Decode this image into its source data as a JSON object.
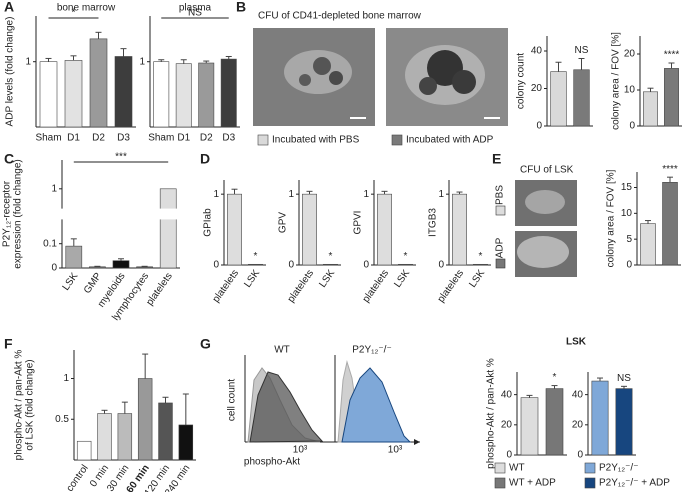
{
  "panel_labels": [
    "A",
    "B",
    "C",
    "D",
    "E",
    "F",
    "G"
  ],
  "chart_data": [
    {
      "type": "bar",
      "title": "bone marrow",
      "ylabel": [
        "ADP levels (fold change)"
      ],
      "categories": [
        "Sham",
        "D1",
        "D2",
        "D3"
      ],
      "values": [
        1.0,
        1.02,
        1.35,
        1.08
      ],
      "errors": [
        0.05,
        0.07,
        0.1,
        0.12
      ],
      "colors": [
        "#ffffff",
        "#e2e2e2",
        "#9a9a9a",
        "#3d3d3d"
      ],
      "ylim": [
        0,
        1.7
      ],
      "yticks": [
        1
      ],
      "annotation": "*"
    },
    {
      "type": "bar",
      "title": "plasma",
      "categories": [
        "Sham",
        "D1",
        "D2",
        "D3"
      ],
      "values": [
        1.0,
        0.97,
        0.98,
        1.04
      ],
      "errors": [
        0.03,
        0.06,
        0.03,
        0.04
      ],
      "colors": [
        "#ffffff",
        "#e2e2e2",
        "#9a9a9a",
        "#3d3d3d"
      ],
      "ylim": [
        0,
        1.7
      ],
      "yticks": [
        1
      ],
      "annotation": "NS"
    },
    {
      "type": "bar",
      "ylabel": [
        "colony count"
      ],
      "values": [
        29,
        30
      ],
      "errors": [
        5,
        6
      ],
      "colors": [
        "#d9d9d9",
        "#7a7a7a"
      ],
      "ylim": [
        0,
        48
      ],
      "yticks": [
        0,
        20,
        40
      ],
      "annotation": "NS"
    },
    {
      "type": "bar",
      "ylabel": [
        "colony area / FOV [%]"
      ],
      "values": [
        9.5,
        16
      ],
      "errors": [
        1,
        1.5
      ],
      "colors": [
        "#d9d9d9",
        "#7a7a7a"
      ],
      "ylim": [
        0,
        25
      ],
      "yticks": [
        0,
        10,
        20
      ],
      "annotation": "****"
    },
    {
      "type": "bar",
      "ylabel": [
        "P2Y₁₂-receptor",
        "expression (fold change)"
      ],
      "categories": [
        "LSK",
        "GMP",
        "myeloids",
        "lymphocytes",
        "platelets"
      ],
      "values": [
        0.09,
        0.005,
        0.03,
        0.005,
        1
      ],
      "errors": [
        0.03,
        0.002,
        0.008,
        0.002,
        null
      ],
      "colors": [
        "#a9a9a9",
        "#777777",
        "#111111",
        "#666666",
        "#dddddd"
      ],
      "ylim": [
        0,
        1.2
      ],
      "axis_break": [
        0.2,
        0.9
      ],
      "yticks": [
        0,
        0.1,
        1
      ],
      "annotation": "***"
    },
    {
      "type": "bar",
      "ylabel": [
        "GPIab"
      ],
      "categories": [
        "platelets",
        "LSK"
      ],
      "values": [
        1,
        0.01
      ],
      "errors": [
        0.07,
        null
      ],
      "colors": [
        "#dddddd",
        "#888888"
      ],
      "ylim": [
        0,
        1.2
      ],
      "yticks": [
        0,
        1
      ],
      "annotation": "*"
    },
    {
      "type": "bar",
      "ylabel": [
        "GPV"
      ],
      "categories": [
        "platelets",
        "LSK"
      ],
      "values": [
        1,
        0.01
      ],
      "errors": [
        0.04,
        null
      ],
      "colors": [
        "#dddddd",
        "#888888"
      ],
      "ylim": [
        0,
        1.2
      ],
      "yticks": [
        0,
        1
      ],
      "annotation": "*"
    },
    {
      "type": "bar",
      "ylabel": [
        "GPVI"
      ],
      "categories": [
        "platelets",
        "LSK"
      ],
      "values": [
        1,
        0.01
      ],
      "errors": [
        0.04,
        null
      ],
      "colors": [
        "#dddddd",
        "#888888"
      ],
      "ylim": [
        0,
        1.2
      ],
      "yticks": [
        0,
        1
      ],
      "annotation": "*"
    },
    {
      "type": "bar",
      "ylabel": [
        "ITGB3"
      ],
      "categories": [
        "platelets",
        "LSK"
      ],
      "values": [
        1,
        0.01
      ],
      "errors": [
        0.03,
        null
      ],
      "colors": [
        "#dddddd",
        "#888888"
      ],
      "ylim": [
        0,
        1.2
      ],
      "yticks": [
        0,
        1
      ],
      "annotation": "*"
    },
    {
      "type": "bar",
      "ylabel": [
        "colony area / FOV  [%]"
      ],
      "values": [
        8,
        16
      ],
      "errors": [
        0.6,
        1
      ],
      "colors": [
        "#dddddd",
        "#777777"
      ],
      "ylim": [
        0,
        18
      ],
      "yticks": [
        0,
        5,
        10,
        15
      ],
      "annotation": "****"
    },
    {
      "type": "bar",
      "ylabel": [
        "phospho-Akt / pan-Akt %",
        "of LSK (fold change)"
      ],
      "categories": [
        "control",
        "0 min",
        "30 min",
        "60 min",
        "120 min",
        "240 min"
      ],
      "values": [
        0.23,
        0.57,
        0.57,
        1.0,
        0.7,
        0.43
      ],
      "errors": [
        null,
        0.04,
        0.14,
        0.3,
        0.07,
        0.38
      ],
      "colors": [
        "#ffffff",
        "#dddddd",
        "#bbbbbb",
        "#999999",
        "#555555",
        "#111111"
      ],
      "ylim": [
        0,
        1.35
      ],
      "yticks": [
        0.5,
        1
      ]
    },
    {
      "type": "bar",
      "ylabel": [
        "phospho-Akt / pan-Akt %"
      ],
      "values": [
        38,
        44
      ],
      "errors": [
        1.5,
        2
      ],
      "colors": [
        "#dddddd",
        "#777777"
      ],
      "ylim": [
        0,
        55
      ],
      "yticks": [
        0,
        20,
        40
      ],
      "annotation": "*"
    },
    {
      "type": "bar",
      "values": [
        49,
        44
      ],
      "errors": [
        2,
        1.5
      ],
      "colors": [
        "#7fa8d8",
        "#17467f"
      ],
      "ylim": [
        0,
        55
      ],
      "yticks": [
        0,
        20,
        40
      ],
      "annotation": "NS"
    }
  ],
  "images": {
    "b_title": "CFU of CD41-depleted bone marrow",
    "e_title": "CFU of LSK",
    "e_labels": [
      "PBS",
      "ADP"
    ]
  },
  "histograms": {
    "titles": [
      "WT",
      "P2Y₁₂⁻/⁻"
    ],
    "ylabel": "cell count",
    "xlabel": "phospho-Akt",
    "xtick": "10³"
  },
  "g_title": "LSK",
  "legends": {
    "B": [
      {
        "name": "Incubated with PBS",
        "color": "#d9d9d9"
      },
      {
        "name": "Incubated with ADP",
        "color": "#7a7a7a"
      }
    ],
    "G": [
      {
        "name": "WT",
        "color": "#dddddd"
      },
      {
        "name": "WT + ADP",
        "color": "#777777"
      },
      {
        "name": "P2Y₁₂⁻/⁻",
        "color": "#7fa8d8"
      },
      {
        "name": "P2Y₁₂⁻/⁻ + ADP",
        "color": "#17467f"
      }
    ]
  }
}
